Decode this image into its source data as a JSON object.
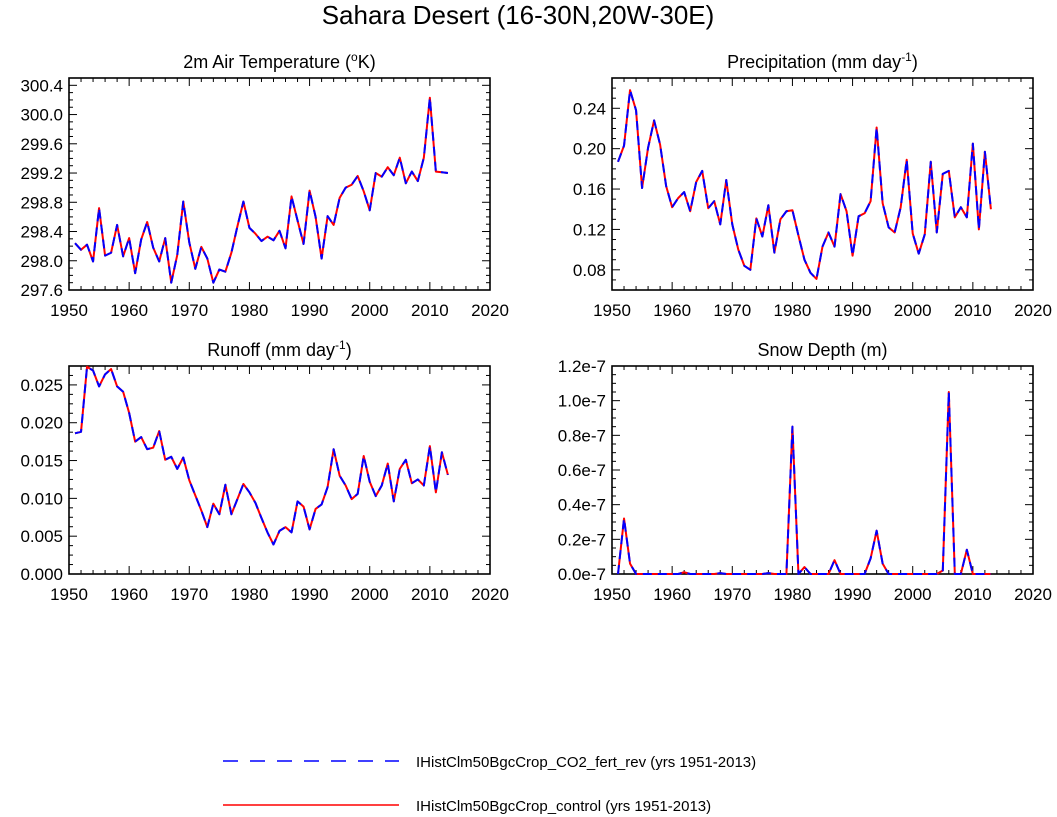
{
  "title": "Sahara Desert (16-30N,20W-30E)",
  "legend": [
    {
      "label": "IHistClm50BgcCrop_CO2_fert_rev (yrs 1951-2013)",
      "color": "#0000ff",
      "style": "dashed"
    },
    {
      "label": "IHistClm50BgcCrop_control (yrs 1951-2013)",
      "color": "#ff0000",
      "style": "solid"
    }
  ],
  "colors": {
    "rev": "#0000ff",
    "control": "#ff0000"
  },
  "chart_data": [
    {
      "id": "temperature",
      "type": "line",
      "title": "2m Air Temperature (",
      "title_sup": "o",
      "title_after": "K)",
      "xlim": [
        1950,
        2020
      ],
      "ylim": [
        297.6,
        300.5
      ],
      "xticks": [
        1950,
        1960,
        1970,
        1980,
        1990,
        2000,
        2010,
        2020
      ],
      "xtick_labels": [
        "1950",
        "1960",
        "1970",
        "1980",
        "1990",
        "2000",
        "2010",
        "2020"
      ],
      "yticks": [
        297.6,
        298.0,
        298.4,
        298.8,
        299.2,
        299.6,
        300.0,
        300.4
      ],
      "ytick_labels": [
        "297.6",
        "298.0",
        "298.4",
        "298.8",
        "299.2",
        "299.6",
        "300.0",
        "300.4"
      ],
      "x_start": 1951,
      "series": [
        {
          "style": "dashed",
          "values": [
            298.24,
            298.15,
            298.22,
            297.99,
            298.72,
            298.07,
            298.11,
            298.49,
            298.06,
            298.31,
            297.83,
            298.29,
            298.53,
            298.18,
            297.99,
            298.31,
            297.7,
            298.08,
            298.81,
            298.25,
            297.89,
            298.19,
            298.03,
            297.7,
            297.88,
            297.85,
            298.11,
            298.47,
            298.81,
            298.45,
            298.37,
            298.27,
            298.33,
            298.28,
            298.41,
            298.17,
            298.88,
            298.55,
            298.23,
            298.96,
            298.6,
            298.03,
            298.61,
            298.49,
            298.86,
            299.0,
            299.04,
            299.16,
            298.95,
            298.69,
            299.2,
            299.15,
            299.28,
            299.17,
            299.41,
            299.06,
            299.22,
            299.09,
            299.41,
            300.23,
            299.22,
            299.21,
            299.2
          ]
        },
        {
          "style": "solid",
          "values": [
            298.24,
            298.15,
            298.22,
            297.99,
            298.72,
            298.07,
            298.11,
            298.49,
            298.06,
            298.31,
            297.83,
            298.29,
            298.53,
            298.18,
            297.99,
            298.31,
            297.7,
            298.08,
            298.81,
            298.25,
            297.89,
            298.19,
            298.03,
            297.7,
            297.88,
            297.85,
            298.11,
            298.47,
            298.81,
            298.45,
            298.37,
            298.27,
            298.33,
            298.28,
            298.41,
            298.17,
            298.88,
            298.55,
            298.23,
            298.96,
            298.6,
            298.03,
            298.61,
            298.49,
            298.86,
            299.0,
            299.04,
            299.16,
            298.95,
            298.69,
            299.2,
            299.15,
            299.28,
            299.17,
            299.41,
            299.06,
            299.22,
            299.09,
            299.41,
            300.23,
            299.22,
            299.21,
            299.2
          ]
        }
      ]
    },
    {
      "id": "precipitation",
      "type": "line",
      "title": "Precipitation (mm day",
      "title_sup": "-1",
      "title_after": ")",
      "xlim": [
        1950,
        2020
      ],
      "ylim": [
        0.06,
        0.27
      ],
      "xticks": [
        1950,
        1960,
        1970,
        1980,
        1990,
        2000,
        2010,
        2020
      ],
      "xtick_labels": [
        "1950",
        "1960",
        "1970",
        "1980",
        "1990",
        "2000",
        "2010",
        "2020"
      ],
      "yticks": [
        0.08,
        0.12,
        0.16,
        0.2,
        0.24
      ],
      "ytick_labels": [
        "0.08",
        "0.12",
        "0.16",
        "0.20",
        "0.24"
      ],
      "x_start": 1951,
      "series": [
        {
          "style": "dashed",
          "values": [
            0.187,
            0.203,
            0.258,
            0.238,
            0.161,
            0.201,
            0.228,
            0.204,
            0.163,
            0.142,
            0.151,
            0.157,
            0.138,
            0.167,
            0.178,
            0.141,
            0.148,
            0.125,
            0.169,
            0.125,
            0.1,
            0.084,
            0.08,
            0.131,
            0.113,
            0.144,
            0.097,
            0.13,
            0.138,
            0.139,
            0.114,
            0.09,
            0.077,
            0.071,
            0.103,
            0.117,
            0.103,
            0.155,
            0.138,
            0.094,
            0.133,
            0.136,
            0.148,
            0.221,
            0.146,
            0.122,
            0.117,
            0.142,
            0.189,
            0.116,
            0.096,
            0.115,
            0.187,
            0.117,
            0.175,
            0.178,
            0.132,
            0.142,
            0.132,
            0.205,
            0.12,
            0.197,
            0.14
          ]
        },
        {
          "style": "solid",
          "values": [
            0.187,
            0.203,
            0.258,
            0.238,
            0.161,
            0.201,
            0.228,
            0.204,
            0.163,
            0.142,
            0.151,
            0.157,
            0.138,
            0.167,
            0.178,
            0.141,
            0.148,
            0.125,
            0.169,
            0.125,
            0.1,
            0.084,
            0.08,
            0.131,
            0.113,
            0.144,
            0.097,
            0.13,
            0.138,
            0.139,
            0.114,
            0.09,
            0.077,
            0.071,
            0.103,
            0.117,
            0.103,
            0.155,
            0.138,
            0.094,
            0.133,
            0.136,
            0.148,
            0.221,
            0.146,
            0.122,
            0.117,
            0.142,
            0.189,
            0.116,
            0.096,
            0.115,
            0.187,
            0.117,
            0.175,
            0.178,
            0.132,
            0.142,
            0.132,
            0.205,
            0.12,
            0.197,
            0.14
          ]
        }
      ]
    },
    {
      "id": "runoff",
      "type": "line",
      "title": "Runoff (mm day",
      "title_sup": "-1",
      "title_after": ")",
      "xlim": [
        1950,
        2020
      ],
      "ylim": [
        0.0,
        0.0275
      ],
      "xticks": [
        1950,
        1960,
        1970,
        1980,
        1990,
        2000,
        2010,
        2020
      ],
      "xtick_labels": [
        "1950",
        "1960",
        "1970",
        "1980",
        "1990",
        "2000",
        "2010",
        "2020"
      ],
      "yticks": [
        0.0,
        0.005,
        0.01,
        0.015,
        0.02,
        0.025
      ],
      "ytick_labels": [
        "0.000",
        "0.005",
        "0.010",
        "0.015",
        "0.020",
        "0.025"
      ],
      "x_start": 1951,
      "series": [
        {
          "style": "dashed",
          "values": [
            0.0186,
            0.0188,
            0.0274,
            0.0269,
            0.0248,
            0.0264,
            0.0271,
            0.0248,
            0.0241,
            0.0213,
            0.0175,
            0.0181,
            0.0165,
            0.0167,
            0.0189,
            0.0151,
            0.0155,
            0.0139,
            0.0154,
            0.0124,
            0.0104,
            0.0084,
            0.0062,
            0.0093,
            0.0079,
            0.0118,
            0.0079,
            0.0099,
            0.0119,
            0.0108,
            0.0094,
            0.0074,
            0.0055,
            0.0039,
            0.0057,
            0.0062,
            0.0055,
            0.0096,
            0.0089,
            0.0059,
            0.0086,
            0.0092,
            0.0115,
            0.0165,
            0.013,
            0.0117,
            0.0099,
            0.0106,
            0.0156,
            0.0122,
            0.0103,
            0.0117,
            0.0146,
            0.0096,
            0.0139,
            0.0151,
            0.012,
            0.0125,
            0.0117,
            0.0169,
            0.0108,
            0.0161,
            0.0131
          ]
        },
        {
          "style": "solid",
          "values": [
            0.0186,
            0.0188,
            0.0274,
            0.0269,
            0.0248,
            0.0264,
            0.0271,
            0.0248,
            0.0241,
            0.0213,
            0.0175,
            0.0181,
            0.0165,
            0.0167,
            0.0189,
            0.0151,
            0.0155,
            0.0139,
            0.0154,
            0.0124,
            0.0104,
            0.0084,
            0.0062,
            0.0093,
            0.0079,
            0.0118,
            0.0079,
            0.0099,
            0.0119,
            0.0108,
            0.0094,
            0.0074,
            0.0055,
            0.0039,
            0.0057,
            0.0062,
            0.0055,
            0.0096,
            0.0089,
            0.0059,
            0.0086,
            0.0092,
            0.0115,
            0.0165,
            0.013,
            0.0117,
            0.0099,
            0.0106,
            0.0156,
            0.0122,
            0.0103,
            0.0117,
            0.0146,
            0.0096,
            0.0139,
            0.0151,
            0.012,
            0.0125,
            0.0117,
            0.0169,
            0.0108,
            0.0161,
            0.0131
          ]
        }
      ]
    },
    {
      "id": "snowdepth",
      "type": "line",
      "title": "Snow Depth (m)",
      "title_sup": "",
      "title_after": "",
      "xlim": [
        1950,
        2020
      ],
      "ylim": [
        0.0,
        1.2e-07
      ],
      "xticks": [
        1950,
        1960,
        1970,
        1980,
        1990,
        2000,
        2010,
        2020
      ],
      "xtick_labels": [
        "1950",
        "1960",
        "1970",
        "1980",
        "1990",
        "2000",
        "2010",
        "2020"
      ],
      "yticks": [
        0.0,
        2e-08,
        4e-08,
        6e-08,
        8e-08,
        1e-07,
        1.2e-07
      ],
      "ytick_labels": [
        "0.0e-7",
        "0.2e-7",
        "0.4e-7",
        "0.6e-7",
        "0.8e-7",
        "1.0e-7",
        "1.2e-7"
      ],
      "x_start": 1951,
      "series": [
        {
          "style": "dashed",
          "values": [
            0.0,
            3.2e-08,
            6e-09,
            0.0,
            0.0,
            0.0,
            0.0,
            0.0,
            0.0,
            0.0,
            0.0,
            1e-09,
            0.0,
            0.0,
            0.0,
            0.0,
            0.0,
            5e-10,
            0.0,
            0.0,
            0.0,
            0.0,
            0.0,
            0.0,
            0.0,
            5e-10,
            0.0,
            0.0,
            0.0,
            8.5e-08,
            0.0,
            4e-09,
            0.0,
            0.0,
            0.0,
            0.0,
            8e-09,
            0.0,
            0.0,
            0.0,
            0.0,
            0.0,
            9e-09,
            2.5e-08,
            6e-09,
            0.0,
            0.0,
            0.0,
            0.0,
            0.0,
            0.0,
            0.0,
            0.0,
            0.0,
            2e-09,
            1.05e-07,
            0.0,
            0.0,
            1.4e-08,
            0.0,
            0.0,
            0.0,
            0.0
          ]
        },
        {
          "style": "solid",
          "values": [
            0.0,
            3.2e-08,
            6e-09,
            0.0,
            0.0,
            0.0,
            0.0,
            0.0,
            0.0,
            0.0,
            0.0,
            1e-09,
            0.0,
            0.0,
            0.0,
            0.0,
            0.0,
            5e-10,
            0.0,
            0.0,
            0.0,
            0.0,
            0.0,
            0.0,
            0.0,
            5e-10,
            0.0,
            0.0,
            0.0,
            8.5e-08,
            0.0,
            4e-09,
            0.0,
            0.0,
            0.0,
            0.0,
            8e-09,
            0.0,
            0.0,
            0.0,
            0.0,
            0.0,
            9e-09,
            2.5e-08,
            6e-09,
            0.0,
            0.0,
            0.0,
            0.0,
            0.0,
            0.0,
            0.0,
            0.0,
            0.0,
            2e-09,
            1.05e-07,
            0.0,
            0.0,
            1.4e-08,
            0.0,
            0.0,
            0.0,
            0.0
          ]
        }
      ]
    }
  ]
}
